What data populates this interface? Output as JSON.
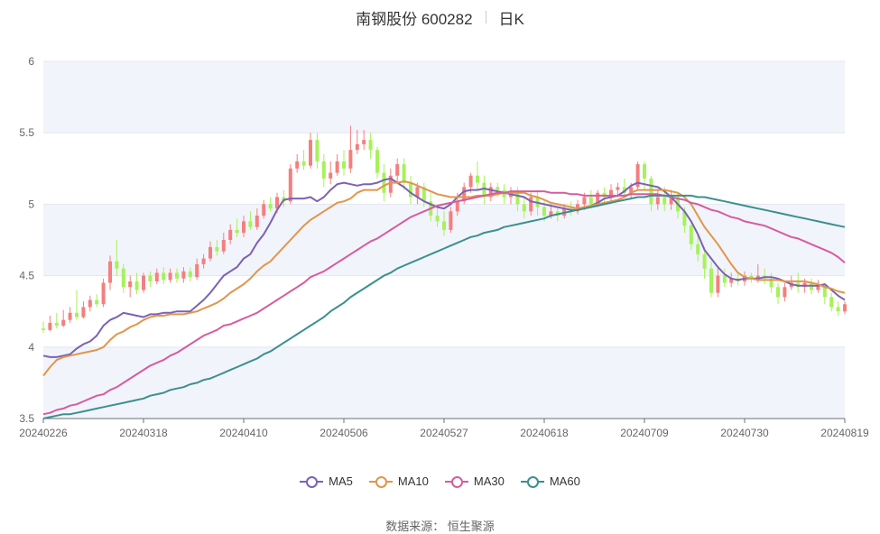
{
  "header": {
    "name": "南钢股份 600282",
    "period": "日K"
  },
  "footer": {
    "source": "数据来源：  恒生聚源"
  },
  "colors": {
    "up": "#f47f7f",
    "down": "#a6f25a",
    "ma5": "#7b62b3",
    "ma10": "#e0964a",
    "ma30": "#d65ca0",
    "ma60": "#3b9090",
    "band": "#f2f4fb",
    "grid": "#e4e7ee"
  },
  "chart_data": {
    "type": "candlestick",
    "ylim": [
      3.5,
      6
    ],
    "yticks": [
      "3.5",
      "4",
      "4.5",
      "5",
      "5.5",
      "6"
    ],
    "xtick_labels": [
      "20240226",
      "20240318",
      "20240410",
      "20240506",
      "20240527",
      "20240618",
      "20240709",
      "20240730",
      "20240819"
    ],
    "xtick_index": [
      0,
      15,
      30,
      45,
      60,
      75,
      90,
      105,
      120
    ],
    "n_points": 121,
    "ohlc": [
      [
        4.13,
        4.12,
        4.18,
        4.1
      ],
      [
        4.12,
        4.17,
        4.22,
        4.11
      ],
      [
        4.17,
        4.15,
        4.24,
        4.13
      ],
      [
        4.15,
        4.19,
        4.26,
        4.14
      ],
      [
        4.19,
        4.24,
        4.28,
        4.17
      ],
      [
        4.24,
        4.21,
        4.4,
        4.19
      ],
      [
        4.21,
        4.28,
        4.32,
        4.2
      ],
      [
        4.28,
        4.33,
        4.36,
        4.25
      ],
      [
        4.33,
        4.3,
        4.37,
        4.28
      ],
      [
        4.3,
        4.45,
        4.48,
        4.28
      ],
      [
        4.45,
        4.6,
        4.64,
        4.4
      ],
      [
        4.6,
        4.55,
        4.75,
        4.5
      ],
      [
        4.55,
        4.42,
        4.58,
        4.38
      ],
      [
        4.42,
        4.46,
        4.5,
        4.35
      ],
      [
        4.46,
        4.4,
        4.52,
        4.37
      ],
      [
        4.4,
        4.5,
        4.52,
        4.38
      ],
      [
        4.5,
        4.46,
        4.53,
        4.42
      ],
      [
        4.46,
        4.52,
        4.55,
        4.44
      ],
      [
        4.52,
        4.47,
        4.56,
        4.44
      ],
      [
        4.47,
        4.52,
        4.55,
        4.45
      ],
      [
        4.52,
        4.48,
        4.55,
        4.45
      ],
      [
        4.48,
        4.53,
        4.56,
        4.45
      ],
      [
        4.53,
        4.49,
        4.56,
        4.46
      ],
      [
        4.49,
        4.58,
        4.62,
        4.47
      ],
      [
        4.58,
        4.62,
        4.65,
        4.55
      ],
      [
        4.62,
        4.7,
        4.74,
        4.6
      ],
      [
        4.7,
        4.67,
        4.75,
        4.64
      ],
      [
        4.67,
        4.75,
        4.8,
        4.65
      ],
      [
        4.75,
        4.82,
        4.86,
        4.72
      ],
      [
        4.82,
        4.8,
        4.9,
        4.77
      ],
      [
        4.8,
        4.88,
        4.92,
        4.77
      ],
      [
        4.88,
        4.84,
        4.95,
        4.82
      ],
      [
        4.84,
        4.92,
        4.97,
        4.82
      ],
      [
        4.92,
        5.0,
        5.03,
        4.9
      ],
      [
        5.0,
        4.97,
        5.05,
        4.95
      ],
      [
        4.97,
        5.05,
        5.08,
        4.94
      ],
      [
        5.05,
        5.02,
        5.1,
        4.98
      ],
      [
        5.02,
        5.25,
        5.28,
        5.0
      ],
      [
        5.25,
        5.3,
        5.35,
        5.22
      ],
      [
        5.3,
        5.27,
        5.38,
        5.24
      ],
      [
        5.27,
        5.45,
        5.5,
        5.25
      ],
      [
        5.45,
        5.3,
        5.5,
        5.25
      ],
      [
        5.3,
        5.18,
        5.35,
        5.12
      ],
      [
        5.18,
        5.22,
        5.3,
        5.14
      ],
      [
        5.22,
        5.3,
        5.35,
        5.2
      ],
      [
        5.3,
        5.25,
        5.38,
        5.2
      ],
      [
        5.25,
        5.38,
        5.55,
        5.22
      ],
      [
        5.38,
        5.42,
        5.52,
        5.35
      ],
      [
        5.42,
        5.45,
        5.52,
        5.38
      ],
      [
        5.45,
        5.38,
        5.5,
        5.32
      ],
      [
        5.38,
        5.22,
        5.4,
        5.18
      ],
      [
        5.22,
        5.08,
        5.28,
        5.02
      ],
      [
        5.08,
        5.2,
        5.25,
        5.05
      ],
      [
        5.2,
        5.28,
        5.32,
        5.15
      ],
      [
        5.28,
        5.15,
        5.32,
        5.1
      ],
      [
        5.15,
        5.05,
        5.2,
        5.0
      ],
      [
        5.05,
        5.12,
        5.15,
        5.0
      ],
      [
        5.12,
        5.02,
        5.15,
        4.98
      ],
      [
        5.02,
        4.92,
        5.08,
        4.88
      ],
      [
        4.92,
        4.88,
        4.98,
        4.84
      ],
      [
        4.88,
        4.82,
        4.95,
        4.78
      ],
      [
        4.82,
        4.95,
        4.98,
        4.8
      ],
      [
        4.95,
        5.02,
        5.08,
        4.92
      ],
      [
        5.02,
        5.12,
        5.15,
        5.0
      ],
      [
        5.12,
        5.2,
        5.22,
        5.08
      ],
      [
        5.2,
        5.15,
        5.3,
        5.1
      ],
      [
        5.15,
        5.05,
        5.2,
        5.0
      ],
      [
        5.05,
        5.12,
        5.15,
        5.02
      ],
      [
        5.12,
        5.1,
        5.15,
        5.05
      ],
      [
        5.1,
        5.05,
        5.14,
        5.0
      ],
      [
        5.05,
        5.08,
        5.12,
        5.0
      ],
      [
        5.08,
        5.0,
        5.12,
        4.95
      ],
      [
        5.0,
        4.95,
        5.05,
        4.9
      ],
      [
        4.95,
        5.05,
        5.08,
        4.92
      ],
      [
        5.05,
        4.98,
        5.1,
        4.92
      ],
      [
        4.98,
        4.92,
        5.02,
        4.88
      ],
      [
        4.92,
        4.95,
        5.0,
        4.9
      ],
      [
        4.95,
        4.92,
        4.98,
        4.88
      ],
      [
        4.92,
        4.97,
        5.0,
        4.9
      ],
      [
        4.97,
        4.95,
        5.02,
        4.92
      ],
      [
        4.95,
        5.0,
        5.03,
        4.93
      ],
      [
        5.0,
        5.05,
        5.08,
        4.96
      ],
      [
        5.05,
        5.0,
        5.1,
        4.98
      ],
      [
        5.0,
        5.08,
        5.1,
        4.98
      ],
      [
        5.08,
        5.05,
        5.12,
        5.0
      ],
      [
        5.05,
        5.1,
        5.14,
        5.02
      ],
      [
        5.1,
        5.12,
        5.15,
        5.05
      ],
      [
        5.12,
        5.08,
        5.18,
        5.05
      ],
      [
        5.08,
        5.12,
        5.15,
        5.04
      ],
      [
        5.12,
        5.28,
        5.3,
        5.1
      ],
      [
        5.28,
        5.18,
        5.3,
        5.1
      ],
      [
        5.18,
        5.0,
        5.2,
        4.95
      ],
      [
        5.0,
        5.05,
        5.1,
        4.96
      ],
      [
        5.05,
        5.0,
        5.12,
        4.95
      ],
      [
        5.0,
        5.05,
        5.1,
        4.96
      ],
      [
        5.05,
        4.95,
        5.08,
        4.9
      ],
      [
        4.95,
        4.85,
        4.98,
        4.8
      ],
      [
        4.85,
        4.72,
        4.88,
        4.68
      ],
      [
        4.72,
        4.65,
        4.78,
        4.6
      ],
      [
        4.65,
        4.55,
        4.7,
        4.48
      ],
      [
        4.55,
        4.38,
        4.6,
        4.35
      ],
      [
        4.38,
        4.5,
        4.55,
        4.35
      ],
      [
        4.5,
        4.45,
        4.55,
        4.42
      ],
      [
        4.45,
        4.48,
        4.52,
        4.42
      ],
      [
        4.48,
        4.46,
        4.52,
        4.43
      ],
      [
        4.46,
        4.5,
        4.53,
        4.43
      ],
      [
        4.5,
        4.48,
        4.52,
        4.45
      ],
      [
        4.48,
        4.5,
        4.58,
        4.45
      ],
      [
        4.5,
        4.48,
        4.55,
        4.44
      ],
      [
        4.48,
        4.42,
        4.52,
        4.38
      ],
      [
        4.42,
        4.35,
        4.45,
        4.3
      ],
      [
        4.35,
        4.42,
        4.45,
        4.32
      ],
      [
        4.42,
        4.45,
        4.5,
        4.4
      ],
      [
        4.45,
        4.42,
        4.52,
        4.38
      ],
      [
        4.42,
        4.45,
        4.48,
        4.38
      ],
      [
        4.45,
        4.4,
        4.48,
        4.37
      ],
      [
        4.4,
        4.44,
        4.47,
        4.38
      ],
      [
        4.44,
        4.35,
        4.45,
        4.3
      ],
      [
        4.35,
        4.28,
        4.38,
        4.25
      ],
      [
        4.28,
        4.25,
        4.32,
        4.22
      ],
      [
        4.25,
        4.3,
        4.32,
        4.23
      ]
    ],
    "series": [
      {
        "name": "MA5",
        "values": [
          3.94,
          3.93,
          3.93,
          3.94,
          3.95,
          3.99,
          4.02,
          4.04,
          4.08,
          4.15,
          4.19,
          4.21,
          4.24,
          4.23,
          4.22,
          4.21,
          4.23,
          4.23,
          4.24,
          4.24,
          4.25,
          4.25,
          4.25,
          4.29,
          4.33,
          4.38,
          4.44,
          4.5,
          4.53,
          4.56,
          4.62,
          4.65,
          4.73,
          4.79,
          4.87,
          4.96,
          5.03,
          5.04,
          5.04,
          5.04,
          5.05,
          5.02,
          5.05,
          5.1,
          5.14,
          5.15,
          5.14,
          5.13,
          5.14,
          5.14,
          5.15,
          5.17,
          5.18,
          5.15,
          5.12,
          5.08,
          5.05,
          5.02,
          5.0,
          4.98,
          4.97,
          5.0,
          5.05,
          5.09,
          5.1,
          5.1,
          5.11,
          5.1,
          5.09,
          5.08,
          5.07,
          5.06,
          5.05,
          5.02,
          5.01,
          5.0,
          4.99,
          4.98,
          4.97,
          4.96,
          4.96,
          4.97,
          4.99,
          5.01,
          5.04,
          5.05,
          5.06,
          5.09,
          5.13,
          5.15,
          5.14,
          5.13,
          5.12,
          5.09,
          5.05,
          5.0,
          4.95,
          4.88,
          4.79,
          4.68,
          4.62,
          4.56,
          4.51,
          4.48,
          4.47,
          4.48,
          4.48,
          4.48,
          4.49,
          4.49,
          4.48,
          4.46,
          4.44,
          4.43,
          4.43,
          4.43,
          4.43,
          4.44,
          4.4,
          4.36,
          4.33
        ]
      },
      {
        "name": "MA10",
        "values": [
          3.8,
          3.86,
          3.91,
          3.93,
          3.94,
          3.95,
          3.96,
          3.97,
          3.98,
          4.0,
          4.05,
          4.09,
          4.11,
          4.14,
          4.16,
          4.19,
          4.21,
          4.22,
          4.22,
          4.23,
          4.23,
          4.23,
          4.24,
          4.25,
          4.27,
          4.29,
          4.31,
          4.34,
          4.38,
          4.41,
          4.44,
          4.48,
          4.53,
          4.57,
          4.6,
          4.65,
          4.7,
          4.75,
          4.8,
          4.85,
          4.89,
          4.92,
          4.95,
          4.98,
          5.01,
          5.02,
          5.04,
          5.08,
          5.1,
          5.1,
          5.1,
          5.13,
          5.15,
          5.15,
          5.16,
          5.15,
          5.13,
          5.11,
          5.09,
          5.07,
          5.06,
          5.05,
          5.05,
          5.05,
          5.05,
          5.06,
          5.06,
          5.06,
          5.07,
          5.08,
          5.08,
          5.08,
          5.08,
          5.06,
          5.05,
          5.03,
          5.01,
          5.0,
          4.99,
          4.98,
          4.97,
          4.98,
          4.99,
          5.0,
          5.01,
          5.02,
          5.03,
          5.05,
          5.08,
          5.1,
          5.1,
          5.1,
          5.1,
          5.1,
          5.09,
          5.08,
          5.05,
          5.0,
          4.92,
          4.84,
          4.78,
          4.72,
          4.65,
          4.58,
          4.52,
          4.49,
          4.48,
          4.47,
          4.47,
          4.47,
          4.47,
          4.46,
          4.46,
          4.46,
          4.46,
          4.45,
          4.44,
          4.42,
          4.41,
          4.39,
          4.38
        ]
      },
      {
        "name": "MA30",
        "values": [
          3.53,
          3.54,
          3.56,
          3.57,
          3.59,
          3.6,
          3.62,
          3.64,
          3.66,
          3.67,
          3.7,
          3.72,
          3.75,
          3.78,
          3.81,
          3.84,
          3.87,
          3.89,
          3.91,
          3.94,
          3.96,
          3.99,
          4.02,
          4.05,
          4.08,
          4.1,
          4.12,
          4.15,
          4.16,
          4.18,
          4.2,
          4.22,
          4.24,
          4.27,
          4.3,
          4.33,
          4.36,
          4.39,
          4.42,
          4.45,
          4.49,
          4.51,
          4.53,
          4.56,
          4.59,
          4.62,
          4.65,
          4.68,
          4.71,
          4.74,
          4.76,
          4.79,
          4.82,
          4.85,
          4.88,
          4.91,
          4.93,
          4.95,
          4.97,
          4.99,
          5.0,
          5.01,
          5.02,
          5.03,
          5.04,
          5.05,
          5.06,
          5.07,
          5.08,
          5.08,
          5.09,
          5.09,
          5.09,
          5.09,
          5.09,
          5.09,
          5.08,
          5.08,
          5.08,
          5.07,
          5.07,
          5.06,
          5.06,
          5.06,
          5.06,
          5.06,
          5.06,
          5.06,
          5.07,
          5.07,
          5.07,
          5.07,
          5.07,
          5.06,
          5.05,
          5.04,
          5.03,
          5.01,
          5.0,
          4.98,
          4.96,
          4.95,
          4.93,
          4.91,
          4.9,
          4.88,
          4.87,
          4.86,
          4.85,
          4.83,
          4.81,
          4.79,
          4.77,
          4.76,
          4.74,
          4.72,
          4.7,
          4.68,
          4.66,
          4.63,
          4.59
        ]
      },
      {
        "name": "MA60",
        "values": [
          3.5,
          3.51,
          3.52,
          3.53,
          3.53,
          3.54,
          3.55,
          3.56,
          3.57,
          3.58,
          3.59,
          3.6,
          3.61,
          3.62,
          3.63,
          3.64,
          3.66,
          3.67,
          3.68,
          3.7,
          3.71,
          3.72,
          3.74,
          3.75,
          3.77,
          3.78,
          3.8,
          3.82,
          3.84,
          3.86,
          3.88,
          3.9,
          3.92,
          3.95,
          3.97,
          4.0,
          4.03,
          4.06,
          4.09,
          4.12,
          4.15,
          4.18,
          4.21,
          4.25,
          4.28,
          4.31,
          4.35,
          4.38,
          4.41,
          4.44,
          4.47,
          4.5,
          4.52,
          4.55,
          4.57,
          4.59,
          4.61,
          4.63,
          4.65,
          4.67,
          4.69,
          4.71,
          4.73,
          4.75,
          4.77,
          4.78,
          4.8,
          4.81,
          4.82,
          4.84,
          4.85,
          4.86,
          4.87,
          4.88,
          4.89,
          4.9,
          4.92,
          4.93,
          4.94,
          4.95,
          4.96,
          4.97,
          4.98,
          4.99,
          5.0,
          5.01,
          5.02,
          5.03,
          5.04,
          5.05,
          5.05,
          5.06,
          5.06,
          5.06,
          5.06,
          5.06,
          5.06,
          5.06,
          5.05,
          5.05,
          5.04,
          5.03,
          5.02,
          5.01,
          5.0,
          4.99,
          4.98,
          4.97,
          4.96,
          4.95,
          4.94,
          4.93,
          4.92,
          4.91,
          4.9,
          4.89,
          4.88,
          4.87,
          4.86,
          4.85,
          4.84
        ]
      }
    ]
  }
}
